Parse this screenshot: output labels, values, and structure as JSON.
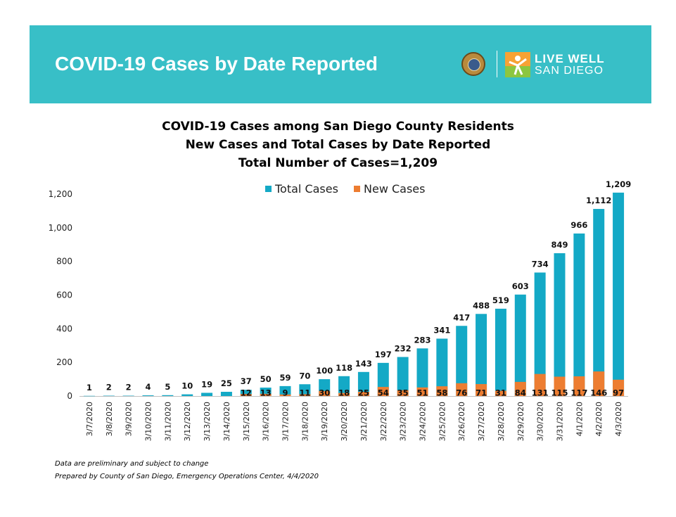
{
  "banner": {
    "title": "COVID-19 Cases by Date Reported",
    "logo_line1": "LIVE WELL",
    "logo_line2": "SAN DIEGO",
    "seal_icon": "county-seal-icon",
    "live_well_icon": "live-well-figure-icon"
  },
  "colors": {
    "banner": "#38bfc7",
    "total": "#14a9c6",
    "new": "#ed7d31"
  },
  "chart_data": {
    "type": "bar",
    "title": "COVID-19 Cases among San Diego County Residents",
    "subtitle": "New Cases and Total Cases by Date Reported",
    "subtitle2": "Total Number of Cases=1,209",
    "xlabel": "",
    "ylabel": "",
    "ylim": [
      0,
      1200
    ],
    "yticks": [
      "0",
      "200",
      "400",
      "600",
      "800",
      "1,000",
      "1,200"
    ],
    "grid": false,
    "legend_position": "top-center",
    "categories": [
      "3/7/2020",
      "3/8/2020",
      "3/9/2020",
      "3/10/2020",
      "3/11/2020",
      "3/12/2020",
      "3/13/2020",
      "3/14/2020",
      "3/15/2020",
      "3/16/2020",
      "3/17/2020",
      "3/18/2020",
      "3/19/2020",
      "3/20/2020",
      "3/21/2020",
      "3/22/2020",
      "3/23/2020",
      "3/24/2020",
      "3/25/2020",
      "3/26/2020",
      "3/27/2020",
      "3/28/2020",
      "3/29/2020",
      "3/30/2020",
      "3/31/2020",
      "4/1/2020",
      "4/2/2020",
      "4/3/2020"
    ],
    "series": [
      {
        "name": "Total Cases",
        "values": [
          1,
          2,
          2,
          4,
          5,
          10,
          19,
          25,
          37,
          50,
          59,
          70,
          100,
          118,
          143,
          197,
          232,
          283,
          341,
          417,
          488,
          519,
          603,
          734,
          849,
          966,
          1112,
          1209
        ],
        "labels": [
          "1",
          "2",
          "2",
          "4",
          "5",
          "10",
          "19",
          "25",
          "37",
          "50",
          "59",
          "70",
          "100",
          "118",
          "143",
          "197",
          "232",
          "283",
          "341",
          "417",
          "488",
          "519",
          "603",
          "734",
          "849",
          "966",
          "1,112",
          "1,209"
        ]
      },
      {
        "name": "New Cases",
        "values": [
          null,
          null,
          null,
          null,
          null,
          null,
          null,
          null,
          12,
          13,
          9,
          11,
          30,
          18,
          25,
          54,
          35,
          51,
          58,
          76,
          71,
          31,
          84,
          131,
          115,
          117,
          146,
          97
        ],
        "labels": [
          "",
          "",
          "",
          "",
          "",
          "",
          "",
          "",
          "12",
          "13",
          "9",
          "11",
          "30",
          "18",
          "25",
          "54",
          "35",
          "51",
          "58",
          "76",
          "71",
          "31",
          "84",
          "131",
          "115",
          "117",
          "146",
          "97"
        ]
      }
    ]
  },
  "footnotes": {
    "line1": "Data are preliminary and subject to change",
    "line2": "Prepared by County of San Diego, Emergency Operations Center, 4/4/2020"
  }
}
